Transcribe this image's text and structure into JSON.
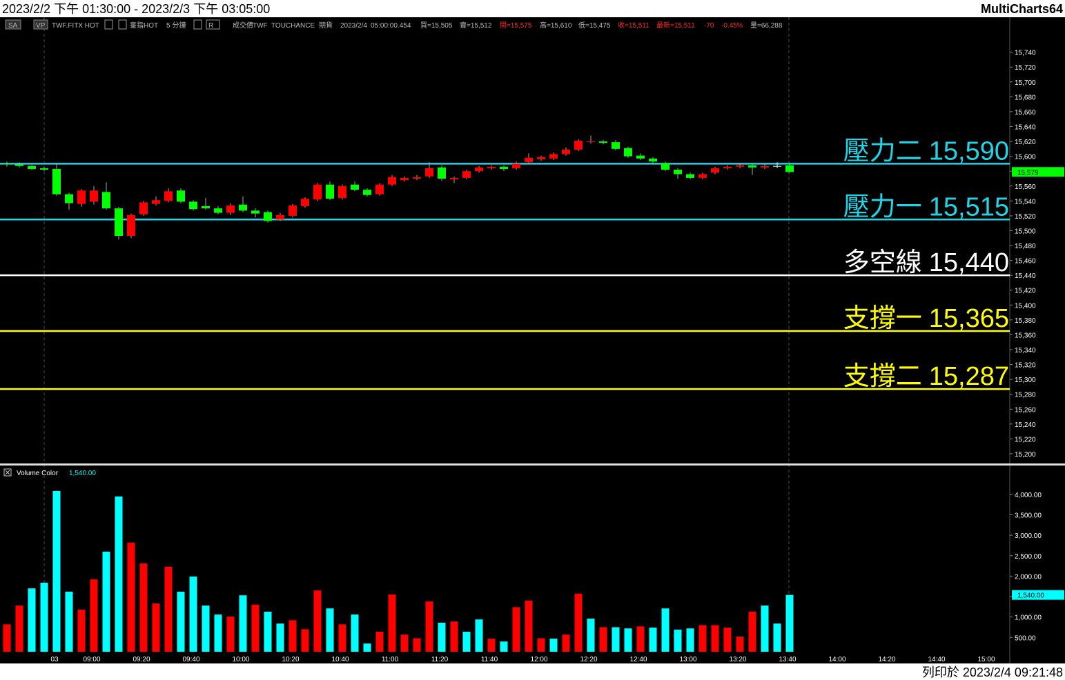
{
  "header": {
    "title": "2023/2/2 下午 01:30:00 - 2023/2/3 下午 03:05:00",
    "app": "MultiCharts64"
  },
  "info_bar": [
    "SA",
    "VP",
    "TWF.FITX HOT",
    "臺指HOT",
    "5 分鐘",
    "R",
    "成交價",
    "TWF",
    "TOUCHANCE",
    "期貨",
    "2023/2/4",
    "05:00:00.454",
    "買=15,505",
    "賣=15,512",
    "開=15,575",
    "高=15,610",
    "低=15,475",
    "收=15,511",
    "最新=15,511",
    "-70",
    "-0.45%",
    "量=66,288"
  ],
  "footer": "列印於 2023/2/4 09:21:48",
  "chart_data": [
    {
      "type": "candlestick",
      "up_color": "#ff0000",
      "down_color": "#00ff00",
      "flat_color": "#ffffff",
      "categories": [
        null,
        null,
        null,
        null,
        "03",
        null,
        null,
        "09:00",
        null,
        null,
        null,
        "09:20",
        null,
        null,
        null,
        "09:40",
        null,
        null,
        null,
        "10:00",
        null,
        null,
        null,
        "10:20",
        null,
        null,
        null,
        "10:40",
        null,
        null,
        null,
        "11:00",
        null,
        null,
        null,
        "11:20",
        null,
        null,
        null,
        "11:40",
        null,
        null,
        null,
        "12:00",
        null,
        null,
        null,
        "12:20",
        null,
        null,
        null,
        "12:40",
        null,
        null,
        null,
        "13:00",
        null,
        null,
        null,
        "13:20",
        null,
        null,
        null,
        "13:40",
        null,
        null,
        null,
        "14:00",
        null,
        null,
        null,
        "14:20",
        null,
        null,
        null,
        "14:40",
        null,
        null,
        null,
        "15:00"
      ],
      "open": [
        15590,
        15589,
        15587,
        15584,
        15583,
        15549,
        15536,
        15539,
        15552,
        15530,
        15493,
        15522,
        15536,
        15540,
        15554,
        15539,
        15533,
        15530,
        15524,
        15535,
        15527,
        15525,
        15515,
        15520,
        15533,
        15542,
        15562,
        15544,
        15562,
        15555,
        15549,
        15562,
        15568,
        15570,
        15573,
        15585,
        15569,
        15571,
        15580,
        15584,
        15586,
        15584,
        15592,
        15596,
        15597,
        15603,
        15609,
        15619,
        15620,
        15619,
        15611,
        15601,
        15597,
        15591,
        15582,
        15576,
        15571,
        15578,
        15584,
        15586,
        15588,
        15585,
        15587,
        15588,
        null,
        null,
        null,
        null,
        null,
        null,
        null,
        null,
        null,
        null,
        null,
        null,
        null,
        null,
        null,
        null
      ],
      "high": [
        15593,
        15592,
        15588,
        15586,
        15590,
        15551,
        15556,
        15560,
        15565,
        15532,
        15523,
        15540,
        15546,
        15557,
        15557,
        15541,
        15544,
        15533,
        15537,
        15546,
        15530,
        15527,
        15524,
        15536,
        15545,
        15564,
        15566,
        15562,
        15566,
        15557,
        15564,
        15575,
        15573,
        15575,
        15592,
        15588,
        15573,
        15582,
        15587,
        15588,
        15588,
        15593,
        15604,
        15601,
        15605,
        15612,
        15623,
        15628,
        15622,
        15622,
        15613,
        15604,
        15599,
        15593,
        15584,
        15578,
        15578,
        15586,
        15588,
        15590,
        15590,
        15589,
        15592,
        15590,
        null,
        null,
        null,
        null,
        null,
        null,
        null,
        null,
        null,
        null,
        null,
        null,
        null,
        null,
        null,
        null
      ],
      "low": [
        15586,
        15585,
        15582,
        15580,
        15547,
        15528,
        15532,
        15535,
        15528,
        15488,
        15490,
        15520,
        15534,
        15538,
        15537,
        15527,
        15528,
        15522,
        15521,
        15525,
        15518,
        15511,
        15513,
        15518,
        15531,
        15540,
        15541,
        15542,
        15553,
        15546,
        15547,
        15560,
        15566,
        15568,
        15571,
        15567,
        15564,
        15569,
        15578,
        15582,
        15580,
        15582,
        15590,
        15594,
        15595,
        15601,
        15607,
        15617,
        15616,
        15608,
        15598,
        15595,
        15591,
        15580,
        15570,
        15569,
        15569,
        15576,
        15582,
        15584,
        15575,
        15583,
        15584,
        15578,
        null,
        null,
        null,
        null,
        null,
        null,
        null,
        null,
        null,
        null,
        null,
        null,
        null,
        null,
        null,
        null
      ],
      "close": [
        15589,
        15587,
        15583,
        15582,
        15549,
        15537,
        15554,
        15554,
        15530,
        15493,
        15521,
        15538,
        15541,
        15553,
        15539,
        15529,
        15530,
        15524,
        15534,
        15527,
        15523,
        15513,
        15521,
        15534,
        15543,
        15562,
        15543,
        15560,
        15555,
        15548,
        15562,
        15572,
        15571,
        15572,
        15584,
        15570,
        15571,
        15580,
        15585,
        15586,
        15583,
        15590,
        15598,
        15599,
        15603,
        15609,
        15621,
        15620,
        15618,
        15610,
        15600,
        15597,
        15593,
        15582,
        15576,
        15571,
        15576,
        15584,
        15586,
        15588,
        15585,
        15587,
        15587,
        15579,
        null,
        null,
        null,
        null,
        null,
        null,
        null,
        null,
        null,
        null,
        null,
        null,
        null,
        null,
        null,
        null
      ],
      "last_label": {
        "value": 15579,
        "label": "15,579"
      },
      "levels": [
        {
          "name": "壓力二",
          "value": 15590,
          "value_label": "15,590",
          "color": "#1fd6e8"
        },
        {
          "name": "壓力一",
          "value": 15515,
          "value_label": "15,515",
          "color": "#1fd6e8"
        },
        {
          "name": "多空線",
          "value": 15440,
          "value_label": "15,440",
          "color": "#ffffff"
        },
        {
          "name": "支撐一",
          "value": 15365,
          "value_label": "15,365",
          "color": "#ffff00"
        },
        {
          "name": "支撐二",
          "value": 15287,
          "value_label": "15,287",
          "color": "#ffff00"
        }
      ],
      "ylim": [
        15187,
        15787
      ],
      "yticks": [
        {
          "value": 15200,
          "label": "15,200"
        },
        {
          "value": 15220,
          "label": "15,220"
        },
        {
          "value": 15240,
          "label": "15,240"
        },
        {
          "value": 15260,
          "label": "15,260"
        },
        {
          "value": 15280,
          "label": "15,280"
        },
        {
          "value": 15300,
          "label": "15,300"
        },
        {
          "value": 15320,
          "label": "15,320"
        },
        {
          "value": 15340,
          "label": "15,340"
        },
        {
          "value": 15360,
          "label": "15,360"
        },
        {
          "value": 15380,
          "label": "15,380"
        },
        {
          "value": 15400,
          "label": "15,400"
        },
        {
          "value": 15420,
          "label": "15,420"
        },
        {
          "value": 15440,
          "label": "15,440"
        },
        {
          "value": 15460,
          "label": "15,460"
        },
        {
          "value": 15480,
          "label": "15,480"
        },
        {
          "value": 15500,
          "label": "15,500"
        },
        {
          "value": 15520,
          "label": "15,520"
        },
        {
          "value": 15540,
          "label": "15,540"
        },
        {
          "value": 15560,
          "label": "15,560"
        },
        {
          "value": 15580,
          "label": "15,580"
        },
        {
          "value": 15600,
          "label": "15,600"
        },
        {
          "value": 15620,
          "label": "15,620"
        },
        {
          "value": 15640,
          "label": "15,640"
        },
        {
          "value": 15660,
          "label": "15,660"
        },
        {
          "value": 15680,
          "label": "15,680"
        },
        {
          "value": 15700,
          "label": "15,700"
        },
        {
          "value": 15720,
          "label": "15,720"
        },
        {
          "value": 15740,
          "label": "15,740"
        }
      ]
    },
    {
      "type": "bar",
      "name": "Volume Color",
      "values": [
        820,
        1280,
        1700,
        1840,
        4085,
        1620,
        1180,
        1920,
        2600,
        3950,
        2820,
        2310,
        1330,
        2230,
        1620,
        1990,
        1280,
        1060,
        1010,
        1530,
        1300,
        1130,
        840,
        920,
        700,
        1650,
        1210,
        820,
        1060,
        350,
        640,
        1550,
        570,
        480,
        1380,
        860,
        890,
        640,
        940,
        470,
        400,
        1240,
        1400,
        480,
        470,
        570,
        1570,
        960,
        750,
        750,
        720,
        770,
        740,
        1210,
        690,
        720,
        800,
        800,
        740,
        520,
        1130,
        1280,
        840,
        1540
      ],
      "colors": [
        "#ff0000",
        "#ff0000",
        "#00ffff",
        "#00ffff",
        "#00ffff",
        "#00ffff",
        "#ff0000",
        "#ff0000",
        "#00ffff",
        "#00ffff",
        "#ff0000",
        "#ff0000",
        "#ff0000",
        "#ff0000",
        "#00ffff",
        "#00ffff",
        "#00ffff",
        "#00ffff",
        "#ff0000",
        "#00ffff",
        "#ff0000",
        "#00ffff",
        "#00ffff",
        "#ff0000",
        "#ff0000",
        "#ff0000",
        "#00ffff",
        "#ff0000",
        "#00ffff",
        "#00ffff",
        "#ff0000",
        "#ff0000",
        "#ff0000",
        "#ff0000",
        "#ff0000",
        "#00ffff",
        "#ff0000",
        "#00ffff",
        "#00ffff",
        "#ff0000",
        "#00ffff",
        "#ff0000",
        "#ff0000",
        "#ff0000",
        "#00ffff",
        "#ff0000",
        "#ff0000",
        "#00ffff",
        "#ff0000",
        "#00ffff",
        "#00ffff",
        "#ff0000",
        "#00ffff",
        "#00ffff",
        "#00ffff",
        "#00ffff",
        "#ff0000",
        "#ff0000",
        "#ff0000",
        "#ff0000",
        "#ff0000",
        "#00ffff",
        "#00ffff",
        "#00ffff"
      ],
      "last_label": {
        "value": 1540,
        "label": "1,540.00"
      },
      "ylim": [
        150,
        4690
      ],
      "yticks": [
        {
          "value": 500,
          "label": "500.00"
        },
        {
          "value": 1000,
          "label": "1,000.00"
        },
        {
          "value": 1500,
          "label": "1,500.00"
        },
        {
          "value": 2000,
          "label": "2,000.00"
        },
        {
          "value": 2500,
          "label": "2,500.00"
        },
        {
          "value": 3000,
          "label": "3,000.00"
        },
        {
          "value": 3500,
          "label": "3,500.00"
        },
        {
          "value": 4000,
          "label": "4,000.00"
        }
      ]
    }
  ]
}
